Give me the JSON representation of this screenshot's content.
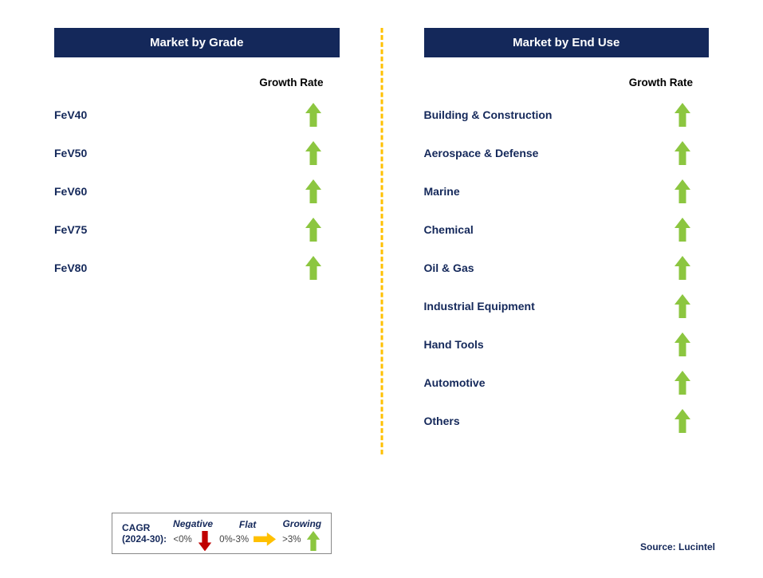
{
  "panels": {
    "left": {
      "title": "Market by Grade",
      "growth_header": "Growth Rate",
      "items": [
        {
          "label": "FeV40",
          "growth": "up"
        },
        {
          "label": "FeV50",
          "growth": "up"
        },
        {
          "label": "FeV60",
          "growth": "up"
        },
        {
          "label": "FeV75",
          "growth": "up"
        },
        {
          "label": "FeV80",
          "growth": "up"
        }
      ]
    },
    "right": {
      "title": "Market by End Use",
      "growth_header": "Growth Rate",
      "items": [
        {
          "label": "Building & Construction",
          "growth": "up"
        },
        {
          "label": "Aerospace & Defense",
          "growth": "up"
        },
        {
          "label": "Marine",
          "growth": "up"
        },
        {
          "label": "Chemical",
          "growth": "up"
        },
        {
          "label": "Oil & Gas",
          "growth": "up"
        },
        {
          "label": "Industrial Equipment",
          "growth": "up"
        },
        {
          "label": "Hand Tools",
          "growth": "up"
        },
        {
          "label": "Automotive",
          "growth": "up"
        },
        {
          "label": "Others",
          "growth": "up"
        }
      ]
    }
  },
  "legend": {
    "cagr_line1": "CAGR",
    "cagr_line2": "(2024-30):",
    "negative": {
      "label": "Negative",
      "range": "<0%"
    },
    "flat": {
      "label": "Flat",
      "range": "0%-3%"
    },
    "growing": {
      "label": "Growing",
      "range": ">3%"
    }
  },
  "source": "Source: Lucintel",
  "colors": {
    "header_bg": "#14285a",
    "header_text": "#ffffff",
    "label_text": "#14285a",
    "arrow_green": "#8cc640",
    "arrow_red": "#c00000",
    "arrow_yellow": "#ffc000",
    "divider": "#ffc000",
    "background": "#ffffff"
  }
}
